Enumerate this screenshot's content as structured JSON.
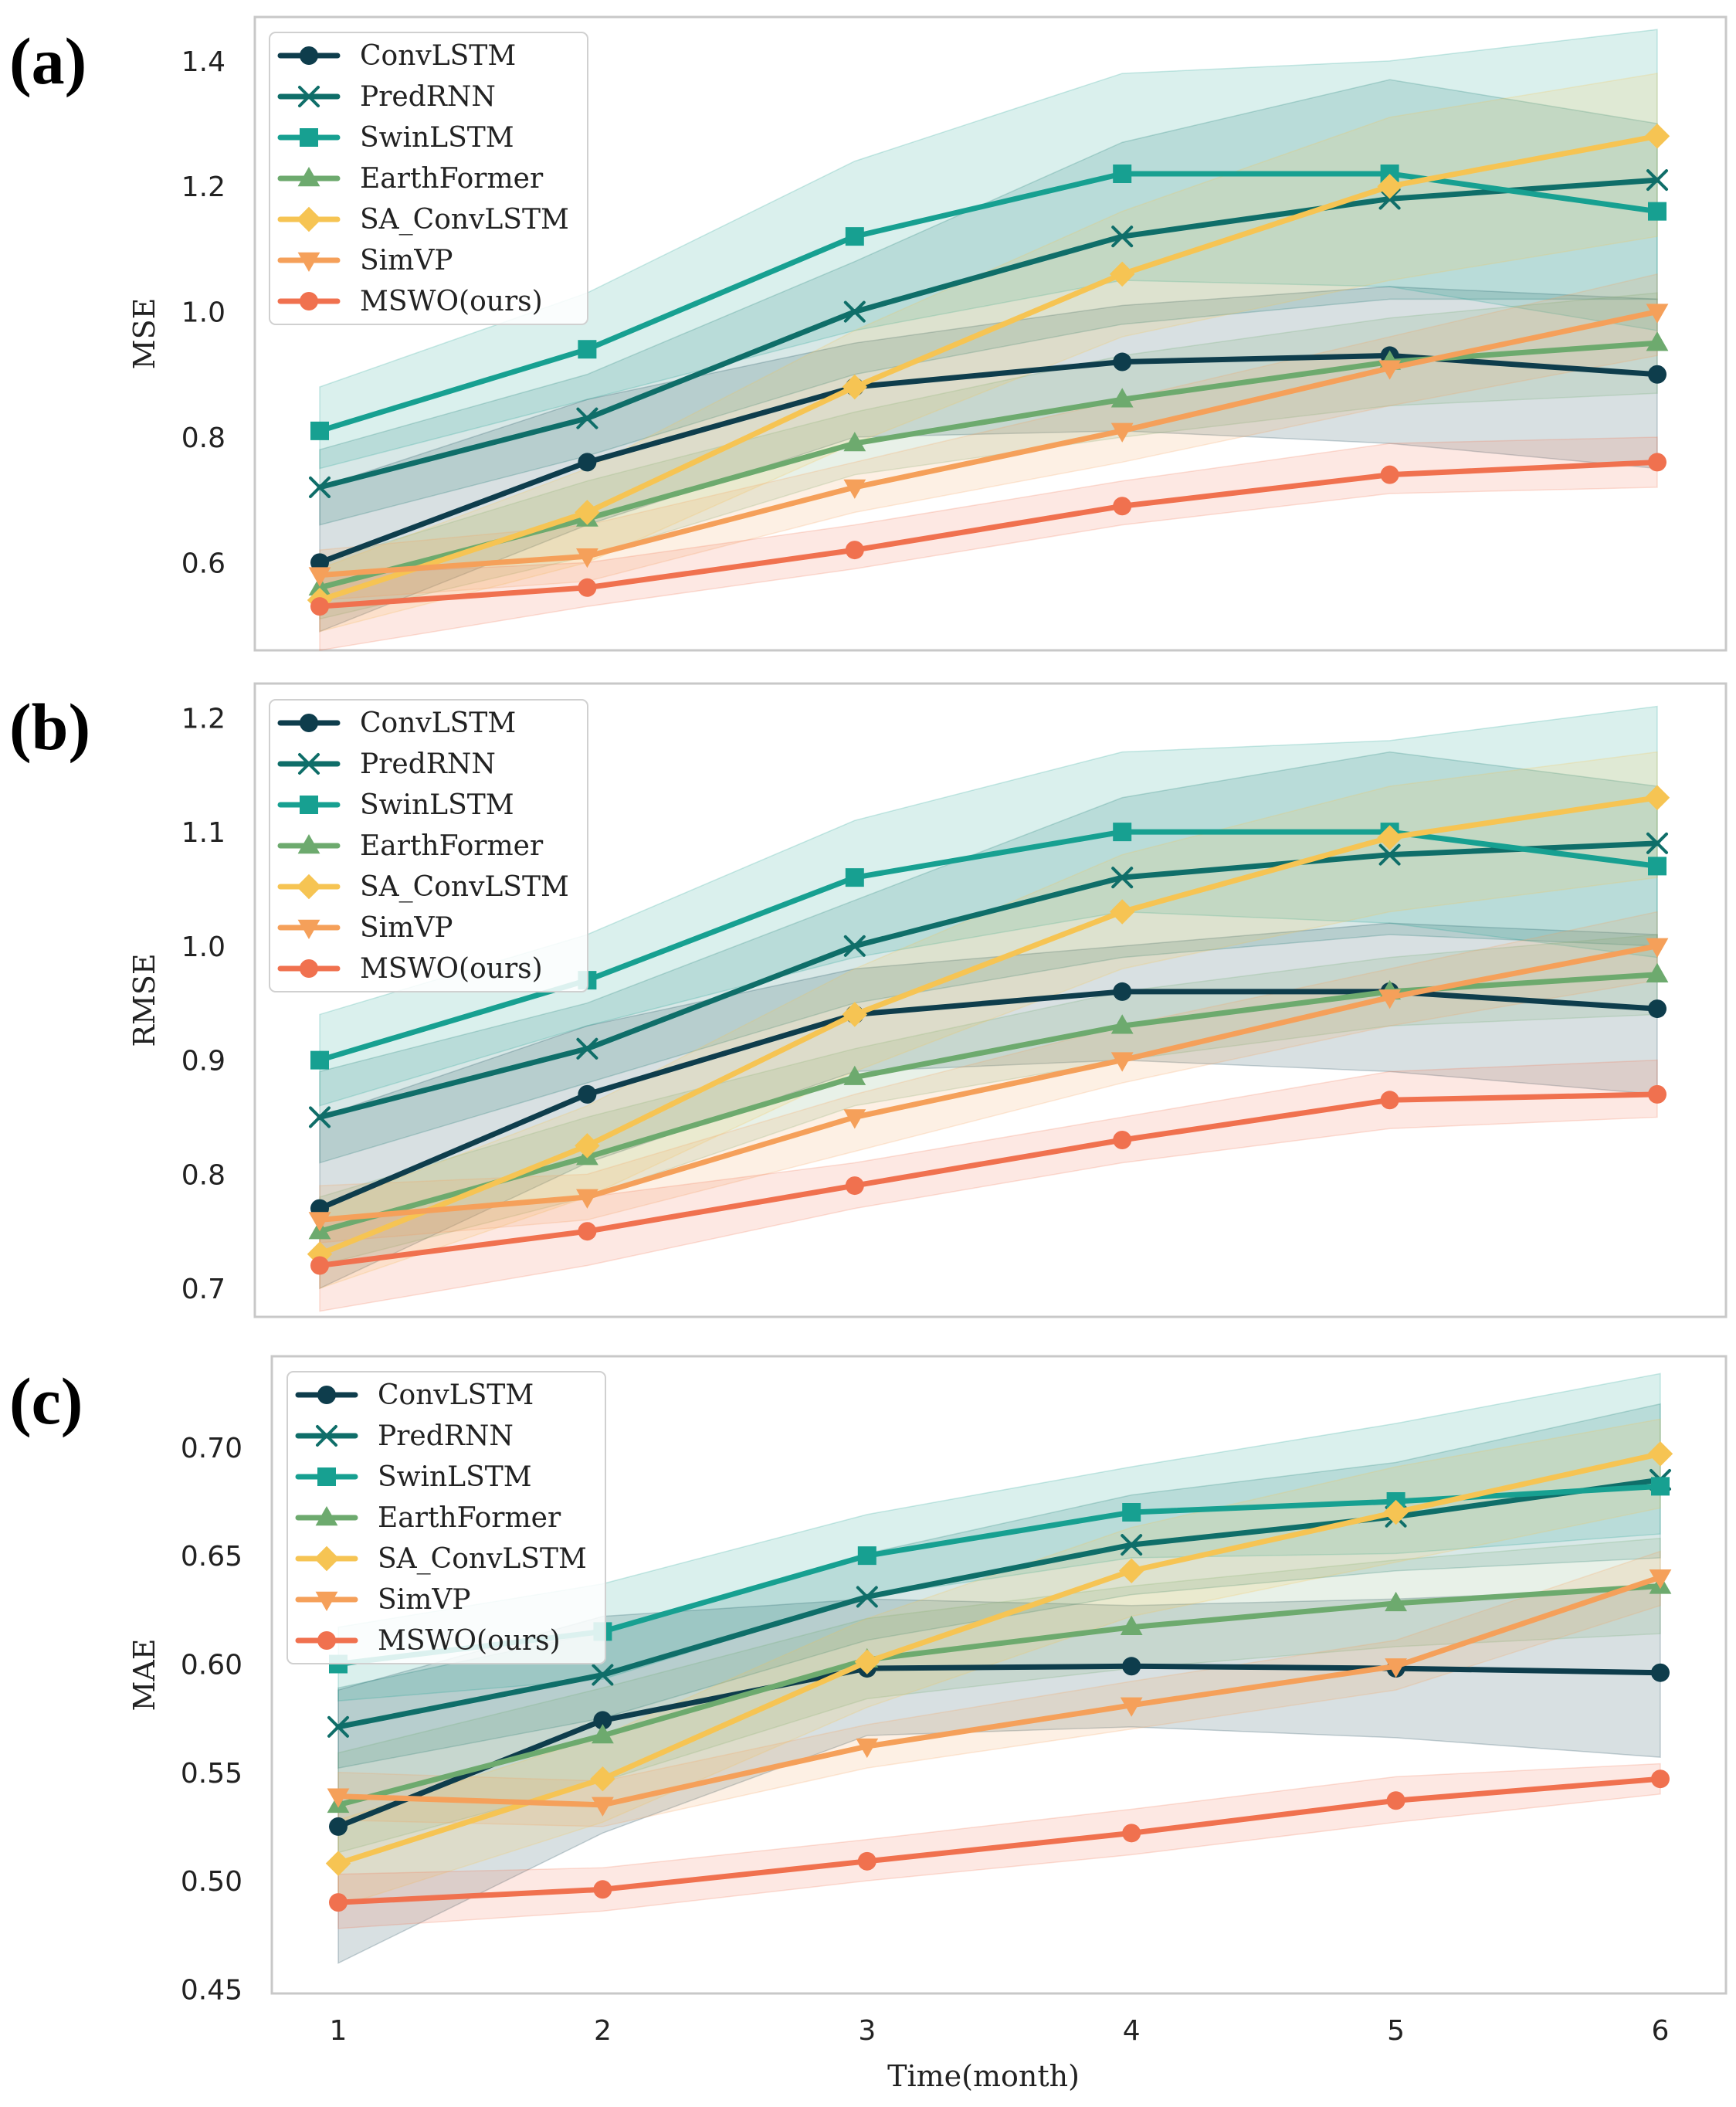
{
  "chart_data": [
    {
      "type": "line",
      "panel_label": "(a)",
      "xlabel": "",
      "ylabel": "MSE",
      "x": [
        1,
        2,
        3,
        4,
        5,
        6
      ],
      "xticks": [
        "1",
        "2",
        "3",
        "4",
        "5",
        "6"
      ],
      "ylim": [
        0.46,
        1.47
      ],
      "yticks": [
        0.6,
        0.8,
        1.0,
        1.2,
        1.4
      ],
      "ytick_labels": [
        "0.6",
        "0.8",
        "1.0",
        "1.2",
        "1.4"
      ],
      "legend_position": "top-left",
      "series": [
        {
          "name": "ConvLSTM",
          "color": "#0e3d4c",
          "marker": "circle",
          "values": [
            0.6,
            0.76,
            0.88,
            0.92,
            0.93,
            0.9
          ],
          "lower": [
            0.49,
            0.66,
            0.8,
            0.81,
            0.79,
            0.75
          ],
          "upper": [
            0.72,
            0.86,
            0.95,
            1.01,
            1.04,
            1.02
          ]
        },
        {
          "name": "PredRNN",
          "color": "#0f6e69",
          "marker": "x",
          "values": [
            0.72,
            0.83,
            1.0,
            1.12,
            1.18,
            1.21
          ],
          "lower": [
            0.66,
            0.77,
            0.9,
            0.98,
            1.02,
            1.02
          ],
          "upper": [
            0.78,
            0.9,
            1.08,
            1.27,
            1.37,
            1.3
          ]
        },
        {
          "name": "SwinLSTM",
          "color": "#17a091",
          "marker": "square",
          "values": [
            0.81,
            0.94,
            1.12,
            1.22,
            1.22,
            1.16
          ],
          "lower": [
            0.75,
            0.86,
            0.97,
            1.05,
            1.04,
            0.97
          ],
          "upper": [
            0.88,
            1.03,
            1.24,
            1.38,
            1.4,
            1.45
          ]
        },
        {
          "name": "EarthFormer",
          "color": "#6daa6e",
          "marker": "triangle-up",
          "values": [
            0.56,
            0.67,
            0.79,
            0.86,
            0.92,
            0.95
          ],
          "lower": [
            0.51,
            0.61,
            0.74,
            0.8,
            0.85,
            0.87
          ],
          "upper": [
            0.6,
            0.73,
            0.84,
            0.93,
            0.99,
            1.03
          ]
        },
        {
          "name": "SA_ConvLSTM",
          "color": "#f6c453",
          "marker": "diamond",
          "values": [
            0.54,
            0.68,
            0.88,
            1.06,
            1.2,
            1.28
          ],
          "lower": [
            0.49,
            0.6,
            0.79,
            0.96,
            1.05,
            1.12
          ],
          "upper": [
            0.59,
            0.75,
            0.97,
            1.16,
            1.31,
            1.38
          ]
        },
        {
          "name": "SimVP",
          "color": "#f5a05a",
          "marker": "triangle-down",
          "values": [
            0.58,
            0.61,
            0.72,
            0.81,
            0.91,
            1.0
          ],
          "lower": [
            0.54,
            0.57,
            0.68,
            0.76,
            0.85,
            0.93
          ],
          "upper": [
            0.62,
            0.66,
            0.76,
            0.86,
            0.96,
            1.06
          ]
        },
        {
          "name": "MSWO(ours)",
          "color": "#f0714f",
          "marker": "circle",
          "values": [
            0.53,
            0.56,
            0.62,
            0.69,
            0.74,
            0.76
          ],
          "lower": [
            0.46,
            0.53,
            0.59,
            0.66,
            0.71,
            0.72
          ],
          "upper": [
            0.58,
            0.6,
            0.66,
            0.73,
            0.79,
            0.8
          ]
        }
      ]
    },
    {
      "type": "line",
      "panel_label": "(b)",
      "xlabel": "",
      "ylabel": "RMSE",
      "x": [
        1,
        2,
        3,
        4,
        5,
        6
      ],
      "xticks": [
        "1",
        "2",
        "3",
        "4",
        "5",
        "6"
      ],
      "ylim": [
        0.675,
        1.23
      ],
      "yticks": [
        0.7,
        0.8,
        0.9,
        1.0,
        1.1,
        1.2
      ],
      "ytick_labels": [
        "0.7",
        "0.8",
        "0.9",
        "1.0",
        "1.1",
        "1.2"
      ],
      "legend_position": "top-left",
      "series": [
        {
          "name": "ConvLSTM",
          "color": "#0e3d4c",
          "marker": "circle",
          "values": [
            0.77,
            0.87,
            0.94,
            0.96,
            0.96,
            0.945
          ],
          "lower": [
            0.7,
            0.81,
            0.89,
            0.9,
            0.89,
            0.87
          ],
          "upper": [
            0.85,
            0.93,
            0.98,
            1.0,
            1.02,
            1.01
          ]
        },
        {
          "name": "PredRNN",
          "color": "#0f6e69",
          "marker": "x",
          "values": [
            0.85,
            0.91,
            1.0,
            1.06,
            1.08,
            1.09
          ],
          "lower": [
            0.81,
            0.88,
            0.95,
            0.99,
            1.01,
            1.0
          ],
          "upper": [
            0.89,
            0.95,
            1.04,
            1.13,
            1.17,
            1.14
          ]
        },
        {
          "name": "SwinLSTM",
          "color": "#17a091",
          "marker": "square",
          "values": [
            0.9,
            0.97,
            1.06,
            1.1,
            1.1,
            1.07
          ],
          "lower": [
            0.86,
            0.93,
            0.99,
            1.03,
            1.02,
            0.99
          ],
          "upper": [
            0.94,
            1.01,
            1.11,
            1.17,
            1.18,
            1.21
          ]
        },
        {
          "name": "EarthFormer",
          "color": "#6daa6e",
          "marker": "triangle-up",
          "values": [
            0.75,
            0.815,
            0.885,
            0.93,
            0.96,
            0.975
          ],
          "lower": [
            0.72,
            0.78,
            0.86,
            0.9,
            0.93,
            0.94
          ],
          "upper": [
            0.78,
            0.85,
            0.91,
            0.96,
            0.99,
            1.01
          ]
        },
        {
          "name": "SA_ConvLSTM",
          "color": "#f6c453",
          "marker": "diamond",
          "values": [
            0.73,
            0.825,
            0.94,
            1.03,
            1.095,
            1.13
          ],
          "lower": [
            0.7,
            0.78,
            0.89,
            0.98,
            1.03,
            1.06
          ],
          "upper": [
            0.77,
            0.86,
            0.98,
            1.08,
            1.14,
            1.17
          ]
        },
        {
          "name": "SimVP",
          "color": "#f5a05a",
          "marker": "triangle-down",
          "values": [
            0.76,
            0.78,
            0.85,
            0.9,
            0.955,
            1.0
          ],
          "lower": [
            0.74,
            0.76,
            0.82,
            0.88,
            0.93,
            0.97
          ],
          "upper": [
            0.79,
            0.8,
            0.87,
            0.93,
            0.98,
            1.03
          ]
        },
        {
          "name": "MSWO(ours)",
          "color": "#f0714f",
          "marker": "circle",
          "values": [
            0.72,
            0.75,
            0.79,
            0.83,
            0.865,
            0.87
          ],
          "lower": [
            0.68,
            0.72,
            0.77,
            0.81,
            0.84,
            0.85
          ],
          "upper": [
            0.76,
            0.78,
            0.81,
            0.85,
            0.89,
            0.9
          ]
        }
      ]
    },
    {
      "type": "line",
      "panel_label": "(c)",
      "xlabel": "Time(month)",
      "ylabel": "MAE",
      "x": [
        1,
        2,
        3,
        4,
        5,
        6
      ],
      "xticks": [
        "1",
        "2",
        "3",
        "4",
        "5",
        "6"
      ],
      "ylim": [
        0.448,
        0.742
      ],
      "yticks": [
        0.45,
        0.5,
        0.55,
        0.6,
        0.65,
        0.7
      ],
      "ytick_labels": [
        "0.45",
        "0.50",
        "0.55",
        "0.60",
        "0.65",
        "0.70"
      ],
      "legend_position": "top-left",
      "series": [
        {
          "name": "ConvLSTM",
          "color": "#0e3d4c",
          "marker": "circle",
          "values": [
            0.525,
            0.574,
            0.598,
            0.599,
            0.598,
            0.596
          ],
          "lower": [
            0.462,
            0.522,
            0.567,
            0.571,
            0.566,
            0.557
          ],
          "upper": [
            0.588,
            0.622,
            0.63,
            0.627,
            0.63,
            0.635
          ]
        },
        {
          "name": "PredRNN",
          "color": "#0f6e69",
          "marker": "x",
          "values": [
            0.571,
            0.595,
            0.631,
            0.655,
            0.668,
            0.685
          ],
          "lower": [
            0.552,
            0.575,
            0.611,
            0.632,
            0.643,
            0.649
          ],
          "upper": [
            0.589,
            0.615,
            0.651,
            0.678,
            0.693,
            0.72
          ]
        },
        {
          "name": "SwinLSTM",
          "color": "#17a091",
          "marker": "square",
          "values": [
            0.6,
            0.615,
            0.65,
            0.67,
            0.675,
            0.682
          ],
          "lower": [
            0.583,
            0.593,
            0.631,
            0.649,
            0.651,
            0.66
          ],
          "upper": [
            0.617,
            0.637,
            0.669,
            0.691,
            0.711,
            0.734
          ]
        },
        {
          "name": "EarthFormer",
          "color": "#6daa6e",
          "marker": "triangle-up",
          "values": [
            0.535,
            0.567,
            0.602,
            0.617,
            0.628,
            0.636
          ],
          "lower": [
            0.513,
            0.546,
            0.584,
            0.598,
            0.608,
            0.614
          ],
          "upper": [
            0.559,
            0.589,
            0.621,
            0.636,
            0.648,
            0.658
          ]
        },
        {
          "name": "SA_ConvLSTM",
          "color": "#f6c453",
          "marker": "diamond",
          "values": [
            0.508,
            0.547,
            0.601,
            0.643,
            0.67,
            0.697
          ],
          "lower": [
            0.488,
            0.527,
            0.58,
            0.622,
            0.647,
            0.672
          ],
          "upper": [
            0.528,
            0.567,
            0.621,
            0.663,
            0.691,
            0.713
          ]
        },
        {
          "name": "SimVP",
          "color": "#f5a05a",
          "marker": "triangle-down",
          "values": [
            0.539,
            0.535,
            0.562,
            0.581,
            0.599,
            0.64
          ],
          "lower": [
            0.528,
            0.525,
            0.552,
            0.57,
            0.588,
            0.627
          ],
          "upper": [
            0.55,
            0.546,
            0.572,
            0.592,
            0.611,
            0.652
          ]
        },
        {
          "name": "MSWO(ours)",
          "color": "#f0714f",
          "marker": "circle",
          "values": [
            0.49,
            0.496,
            0.509,
            0.522,
            0.537,
            0.547
          ],
          "lower": [
            0.478,
            0.486,
            0.5,
            0.512,
            0.527,
            0.54
          ],
          "upper": [
            0.503,
            0.506,
            0.519,
            0.533,
            0.548,
            0.554
          ]
        }
      ]
    }
  ]
}
